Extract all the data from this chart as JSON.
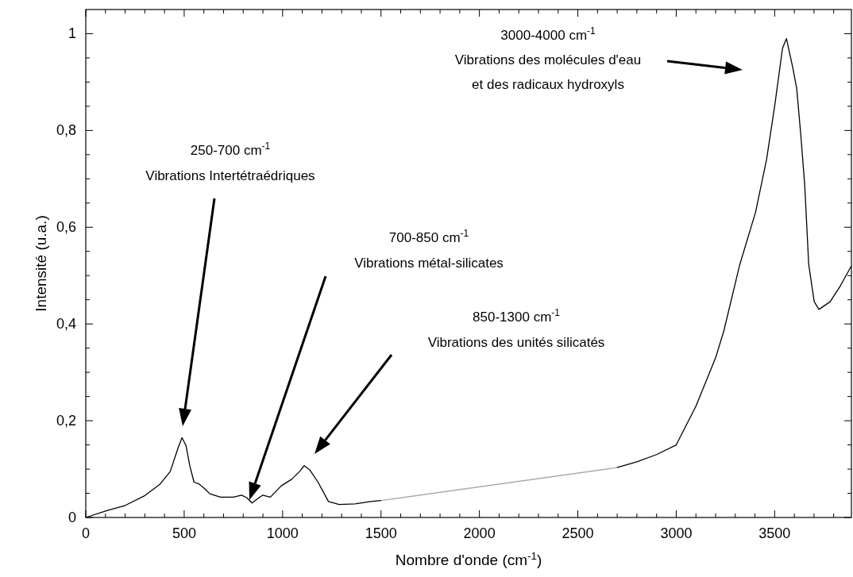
{
  "chart_data": {
    "type": "line",
    "xlabel": "Nombre d'onde (cm$^{-1}$)",
    "ylabel": "Intensité (u.a.)",
    "xlim": [
      0,
      3890
    ],
    "ylim": [
      0,
      1.05
    ],
    "xticks": [
      0,
      {
        "value": 100,
        "label": null
      },
      {
        "value": 200,
        "label": null
      },
      {
        "value": 300,
        "label": null
      },
      {
        "value": 400,
        "label": null
      },
      500,
      {
        "value": 600,
        "label": null
      },
      {
        "value": 700,
        "label": null
      },
      {
        "value": 800,
        "label": null
      },
      {
        "value": 900,
        "label": null
      },
      1000,
      {
        "value": 1100,
        "label": null
      },
      {
        "value": 1200,
        "label": null
      },
      {
        "value": 1300,
        "label": null
      },
      {
        "value": 1400,
        "label": null
      },
      1500,
      {
        "value": 1600,
        "label": null
      },
      {
        "value": 1700,
        "label": null
      },
      {
        "value": 1800,
        "label": null
      },
      {
        "value": 1900,
        "label": null
      },
      2000,
      {
        "value": 2100,
        "label": null
      },
      {
        "value": 2200,
        "label": null
      },
      {
        "value": 2300,
        "label": null
      },
      {
        "value": 2400,
        "label": null
      },
      2500,
      {
        "value": 2600,
        "label": null
      },
      {
        "value": 2700,
        "label": null
      },
      {
        "value": 2800,
        "label": null
      },
      {
        "value": 2900,
        "label": null
      },
      3000,
      {
        "value": 3100,
        "label": null
      },
      {
        "value": 3200,
        "label": null
      },
      {
        "value": 3300,
        "label": null
      },
      {
        "value": 3400,
        "label": null
      },
      3500,
      {
        "value": 3600,
        "label": null
      },
      {
        "value": 3700,
        "label": null
      },
      {
        "value": 3800,
        "label": null
      }
    ],
    "yticks": [
      0,
      {
        "value": 0.05,
        "label": null
      },
      {
        "value": 0.1,
        "label": null
      },
      {
        "value": 0.15,
        "label": null
      },
      {
        "value": 0.2,
        "label": "0,2"
      },
      {
        "value": 0.25,
        "label": null
      },
      {
        "value": 0.3,
        "label": null
      },
      {
        "value": 0.35,
        "label": null
      },
      {
        "value": 0.4,
        "label": "0,4"
      },
      {
        "value": 0.45,
        "label": null
      },
      {
        "value": 0.5,
        "label": null
      },
      {
        "value": 0.55,
        "label": null
      },
      {
        "value": 0.6,
        "label": "0,6"
      },
      {
        "value": 0.65,
        "label": null
      },
      {
        "value": 0.7,
        "label": null
      },
      {
        "value": 0.75,
        "label": null
      },
      {
        "value": 0.8,
        "label": "0,8"
      },
      {
        "value": 0.85,
        "label": null
      },
      {
        "value": 0.9,
        "label": null
      },
      {
        "value": 0.95,
        "label": null
      },
      1
    ],
    "grid": false,
    "marker": "none",
    "line_style": "solid",
    "series": [
      {
        "color": "#000000",
        "x": [
          0,
          107,
          201,
          295,
          375,
          429,
          469,
          489,
          509,
          529,
          550,
          576,
          603,
          630,
          684,
          751,
          791,
          818,
          845,
          871,
          898,
          938,
          992,
          1046,
          1086,
          1110,
          1139,
          1180,
          1233,
          1287,
          1368,
          1448,
          1501
        ],
        "values": [
          0,
          0.014,
          0.025,
          0.044,
          0.068,
          0.095,
          0.144,
          0.165,
          0.149,
          0.106,
          0.073,
          0.069,
          0.06,
          0.049,
          0.042,
          0.042,
          0.046,
          0.041,
          0.03,
          0.038,
          0.046,
          0.042,
          0.065,
          0.079,
          0.095,
          0.107,
          0.098,
          0.073,
          0.033,
          0.027,
          0.028,
          0.033,
          0.035
        ]
      },
      {
        "color": "#aaaaaa",
        "x": [
          1501,
          2698
        ],
        "values": [
          0.035,
          0.103
        ]
      },
      {
        "color": "#000000",
        "x": [
          2698,
          2800,
          2900,
          3000,
          3100,
          3200,
          3242,
          3323,
          3403,
          3459,
          3500,
          3540,
          3560,
          3592,
          3612,
          3633,
          3653,
          3673,
          3701,
          3725,
          3782,
          3834,
          3890
        ],
        "values": [
          0.103,
          0.115,
          0.13,
          0.15,
          0.23,
          0.33,
          0.386,
          0.523,
          0.631,
          0.74,
          0.85,
          0.97,
          0.99,
          0.93,
          0.887,
          0.79,
          0.686,
          0.523,
          0.446,
          0.43,
          0.446,
          0.479,
          0.52
        ]
      }
    ],
    "annotations": [
      "250-700 cm$^{-1}$",
      "Vibrations Intertétraédriques",
      "700-850 cm$^{-1}$",
      "Vibrations métal-silicates",
      "850-1300 cm$^{-1}$",
      "Vibrations des unités silicatés",
      "3000-4000 cm$^{-1}$",
      "Vibrations des molécules d'eau",
      "et des radicaux hydroxyls"
    ]
  }
}
